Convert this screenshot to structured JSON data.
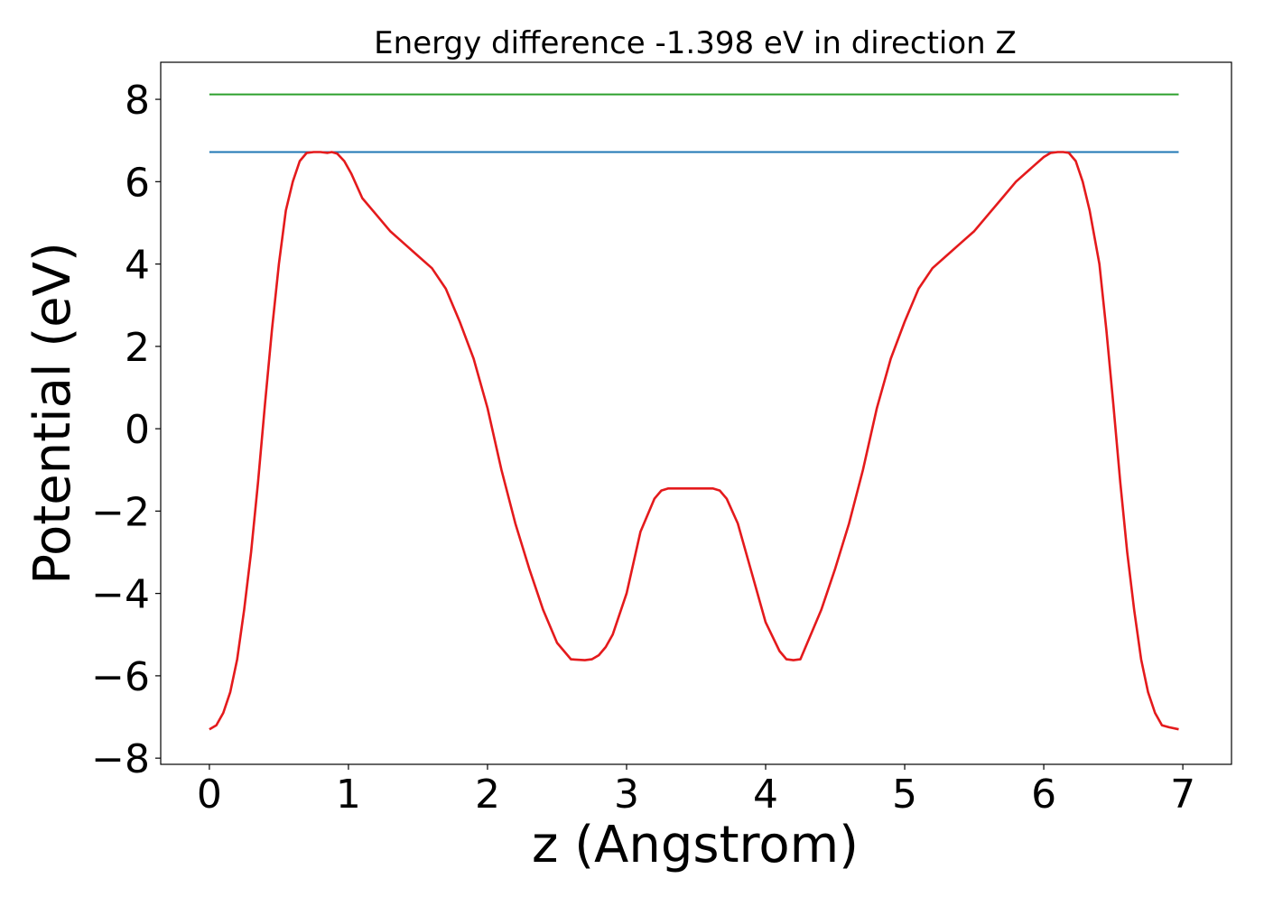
{
  "chart_data": {
    "type": "line",
    "title": "Energy difference -1.398 eV in direction Z",
    "xlabel": "z (Angstrom)",
    "ylabel": "Potential (eV)",
    "xlim": [
      -0.35,
      7.35
    ],
    "ylim": [
      -8.15,
      8.9
    ],
    "grid": false,
    "x_ticks": [
      0,
      1,
      2,
      3,
      4,
      5,
      6,
      7
    ],
    "x_tick_labels": [
      "0",
      "1",
      "2",
      "3",
      "4",
      "5",
      "6",
      "7"
    ],
    "y_ticks": [
      -8,
      -6,
      -4,
      -2,
      0,
      2,
      4,
      6,
      8
    ],
    "y_tick_labels": [
      "−8",
      "−6",
      "−4",
      "−2",
      "0",
      "2",
      "4",
      "6",
      "8"
    ],
    "series": [
      {
        "color": "#2ca02c",
        "x": [
          0.0,
          6.97
        ],
        "y": [
          8.12,
          8.12
        ]
      },
      {
        "color": "#1f77b4",
        "x": [
          0.0,
          6.97
        ],
        "y": [
          6.72,
          6.72
        ]
      },
      {
        "color": "#e41a1c",
        "x": [
          0.0,
          0.05,
          0.1,
          0.15,
          0.2,
          0.25,
          0.3,
          0.35,
          0.4,
          0.45,
          0.5,
          0.55,
          0.6,
          0.65,
          0.7,
          0.75,
          0.8,
          0.85,
          0.88,
          0.92,
          0.97,
          1.02,
          1.1,
          1.2,
          1.3,
          1.4,
          1.5,
          1.6,
          1.7,
          1.8,
          1.9,
          2.0,
          2.1,
          2.2,
          2.3,
          2.4,
          2.5,
          2.6,
          2.7,
          2.75,
          2.8,
          2.85,
          2.9,
          3.0,
          3.1,
          3.2,
          3.25,
          3.3,
          3.35,
          3.45,
          3.55,
          3.62,
          3.67,
          3.72,
          3.8,
          3.9,
          4.0,
          4.1,
          4.15,
          4.2,
          4.25,
          4.3,
          4.4,
          4.5,
          4.6,
          4.7,
          4.8,
          4.9,
          5.0,
          5.1,
          5.2,
          5.3,
          5.4,
          5.5,
          5.6,
          5.7,
          5.8,
          5.9,
          6.0,
          6.05,
          6.1,
          6.14,
          6.18,
          6.23,
          6.28,
          6.33,
          6.4,
          6.45,
          6.5,
          6.55,
          6.6,
          6.65,
          6.7,
          6.75,
          6.8,
          6.85,
          6.9,
          6.97
        ],
        "y": [
          -7.3,
          -7.2,
          -6.9,
          -6.4,
          -5.6,
          -4.4,
          -3.0,
          -1.3,
          0.6,
          2.4,
          4.0,
          5.3,
          6.0,
          6.5,
          6.7,
          6.72,
          6.72,
          6.7,
          6.72,
          6.68,
          6.5,
          6.2,
          5.6,
          5.2,
          4.8,
          4.5,
          4.2,
          3.9,
          3.4,
          2.6,
          1.7,
          0.5,
          -1.0,
          -2.3,
          -3.4,
          -4.4,
          -5.2,
          -5.6,
          -5.62,
          -5.6,
          -5.5,
          -5.3,
          -5.0,
          -4.0,
          -2.5,
          -1.7,
          -1.5,
          -1.45,
          -1.45,
          -1.45,
          -1.45,
          -1.45,
          -1.5,
          -1.7,
          -2.3,
          -3.5,
          -4.7,
          -5.4,
          -5.6,
          -5.62,
          -5.6,
          -5.2,
          -4.4,
          -3.4,
          -2.3,
          -1.0,
          0.5,
          1.7,
          2.6,
          3.4,
          3.9,
          4.2,
          4.5,
          4.8,
          5.2,
          5.6,
          6.0,
          6.3,
          6.6,
          6.7,
          6.72,
          6.72,
          6.7,
          6.5,
          6.0,
          5.3,
          4.0,
          2.4,
          0.6,
          -1.3,
          -3.0,
          -4.4,
          -5.6,
          -6.4,
          -6.9,
          -7.2,
          -7.25,
          -7.3
        ]
      }
    ]
  }
}
